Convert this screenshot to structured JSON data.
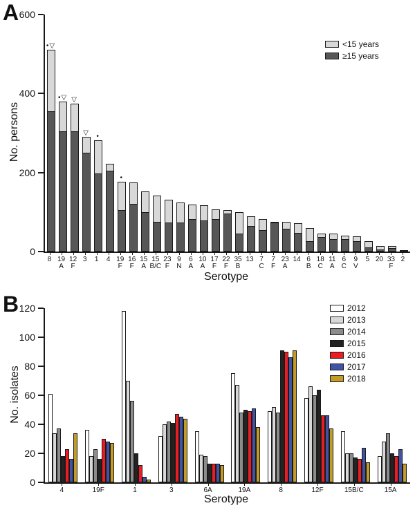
{
  "panels": {
    "a_label": "A",
    "b_label": "B"
  },
  "chart_data": [
    {
      "panel": "A",
      "type": "bar",
      "subtype": "stacked",
      "title": "",
      "xlabel": "Serotype",
      "ylabel": "No. persons",
      "ylim": [
        0,
        600
      ],
      "yticks": [
        0,
        200,
        400,
        600
      ],
      "grid": false,
      "legend_position": "top-right",
      "categories": [
        "8",
        "19A",
        "12F",
        "3",
        "1",
        "4",
        "19F",
        "16F",
        "15A",
        "15B/C",
        "23F",
        "9N",
        "6A",
        "10A",
        "17F",
        "22F",
        "35B",
        "13",
        "7C",
        "7F",
        "23A",
        "14",
        "6B",
        "18C",
        "11A",
        "6C",
        "9V",
        "5",
        "20",
        "33F",
        "2"
      ],
      "category_labels": [
        [
          "8",
          ""
        ],
        [
          "19",
          "A"
        ],
        [
          "12",
          "F"
        ],
        [
          "3",
          ""
        ],
        [
          "1",
          ""
        ],
        [
          "4",
          ""
        ],
        [
          "19",
          "F"
        ],
        [
          "16",
          "F"
        ],
        [
          "15",
          "A"
        ],
        [
          "15",
          "B/C"
        ],
        [
          "23",
          "F"
        ],
        [
          "9",
          "N"
        ],
        [
          "6",
          "A"
        ],
        [
          "10",
          "A"
        ],
        [
          "17",
          "F"
        ],
        [
          "22",
          "F"
        ],
        [
          "35",
          "B"
        ],
        [
          "13",
          ""
        ],
        [
          "7",
          "C"
        ],
        [
          "7",
          "F"
        ],
        [
          "23",
          "A"
        ],
        [
          "14",
          ""
        ],
        [
          "6",
          "B"
        ],
        [
          "18",
          "C"
        ],
        [
          "11",
          "A"
        ],
        [
          "6",
          "C"
        ],
        [
          "9",
          "V"
        ],
        [
          "5",
          ""
        ],
        [
          "20",
          ""
        ],
        [
          "33",
          "F"
        ],
        [
          "2",
          ""
        ]
      ],
      "series": [
        {
          "name": "<15 years",
          "color": "#D8D8D8",
          "values": [
            155,
            75,
            70,
            40,
            84,
            18,
            71,
            55,
            52,
            66,
            57,
            50,
            36,
            38,
            25,
            9,
            54,
            24,
            28,
            2,
            18,
            24,
            33,
            9,
            14,
            8,
            12,
            15,
            9,
            5,
            0
          ]
        },
        {
          "name": "≥15 years",
          "color": "#575757",
          "values": [
            355,
            305,
            305,
            250,
            198,
            204,
            105,
            120,
            100,
            75,
            73,
            73,
            82,
            79,
            83,
            96,
            46,
            64,
            54,
            74,
            57,
            48,
            27,
            36,
            31,
            32,
            26,
            10,
            6,
            9,
            3
          ]
        }
      ],
      "totals": [
        510,
        380,
        375,
        290,
        282,
        222,
        176,
        175,
        152,
        141,
        130,
        123,
        118,
        117,
        108,
        105,
        100,
        88,
        82,
        76,
        75,
        72,
        60,
        45,
        45,
        40,
        38,
        25,
        15,
        14,
        3
      ],
      "markers": [
        "•▽",
        "•▽",
        "▽",
        "▽",
        "•",
        "",
        "•",
        "",
        "",
        "",
        "",
        "",
        "",
        "",
        "",
        "",
        "",
        "",
        "",
        "",
        "",
        "",
        "",
        "",
        "",
        "",
        "",
        "",
        "",
        "",
        ""
      ],
      "marker_legend_note": "• and ▽ significance markers above bars 8, 19A, 12F, 3, 1, 19F"
    },
    {
      "panel": "B",
      "type": "bar",
      "subtype": "grouped",
      "title": "",
      "xlabel": "Serotype",
      "ylabel": "No. isolates",
      "ylim": [
        0,
        120
      ],
      "yticks": [
        0,
        20,
        40,
        60,
        80,
        100,
        120
      ],
      "grid": false,
      "legend_position": "top-right",
      "categories": [
        "4",
        "19F",
        "1",
        "3",
        "6A",
        "19A",
        "8",
        "12F",
        "15B/C",
        "15A"
      ],
      "series": [
        {
          "name": "2012",
          "color": "#FFFFFF",
          "values": [
            61,
            36,
            118,
            32,
            35,
            75,
            49,
            58,
            35,
            18
          ]
        },
        {
          "name": "2013",
          "color": "#D8D8D8",
          "values": [
            34,
            18,
            70,
            40,
            19,
            67,
            52,
            66,
            20,
            28
          ]
        },
        {
          "name": "2014",
          "color": "#8C8C8C",
          "values": [
            37,
            23,
            56,
            42,
            18,
            48,
            48,
            60,
            20,
            34
          ]
        },
        {
          "name": "2015",
          "color": "#232323",
          "values": [
            18,
            16,
            20,
            41,
            13,
            50,
            91,
            64,
            17,
            20
          ]
        },
        {
          "name": "2016",
          "color": "#EC1C24",
          "values": [
            23,
            30,
            12,
            47,
            13,
            49,
            90,
            46,
            16,
            18
          ]
        },
        {
          "name": "2017",
          "color": "#4253A3",
          "values": [
            16,
            28,
            4,
            45,
            13,
            51,
            86,
            46,
            24,
            23
          ]
        },
        {
          "name": "2018",
          "color": "#C29B28",
          "values": [
            34,
            27,
            2,
            44,
            12,
            38,
            91,
            37,
            14,
            13
          ]
        }
      ]
    }
  ]
}
